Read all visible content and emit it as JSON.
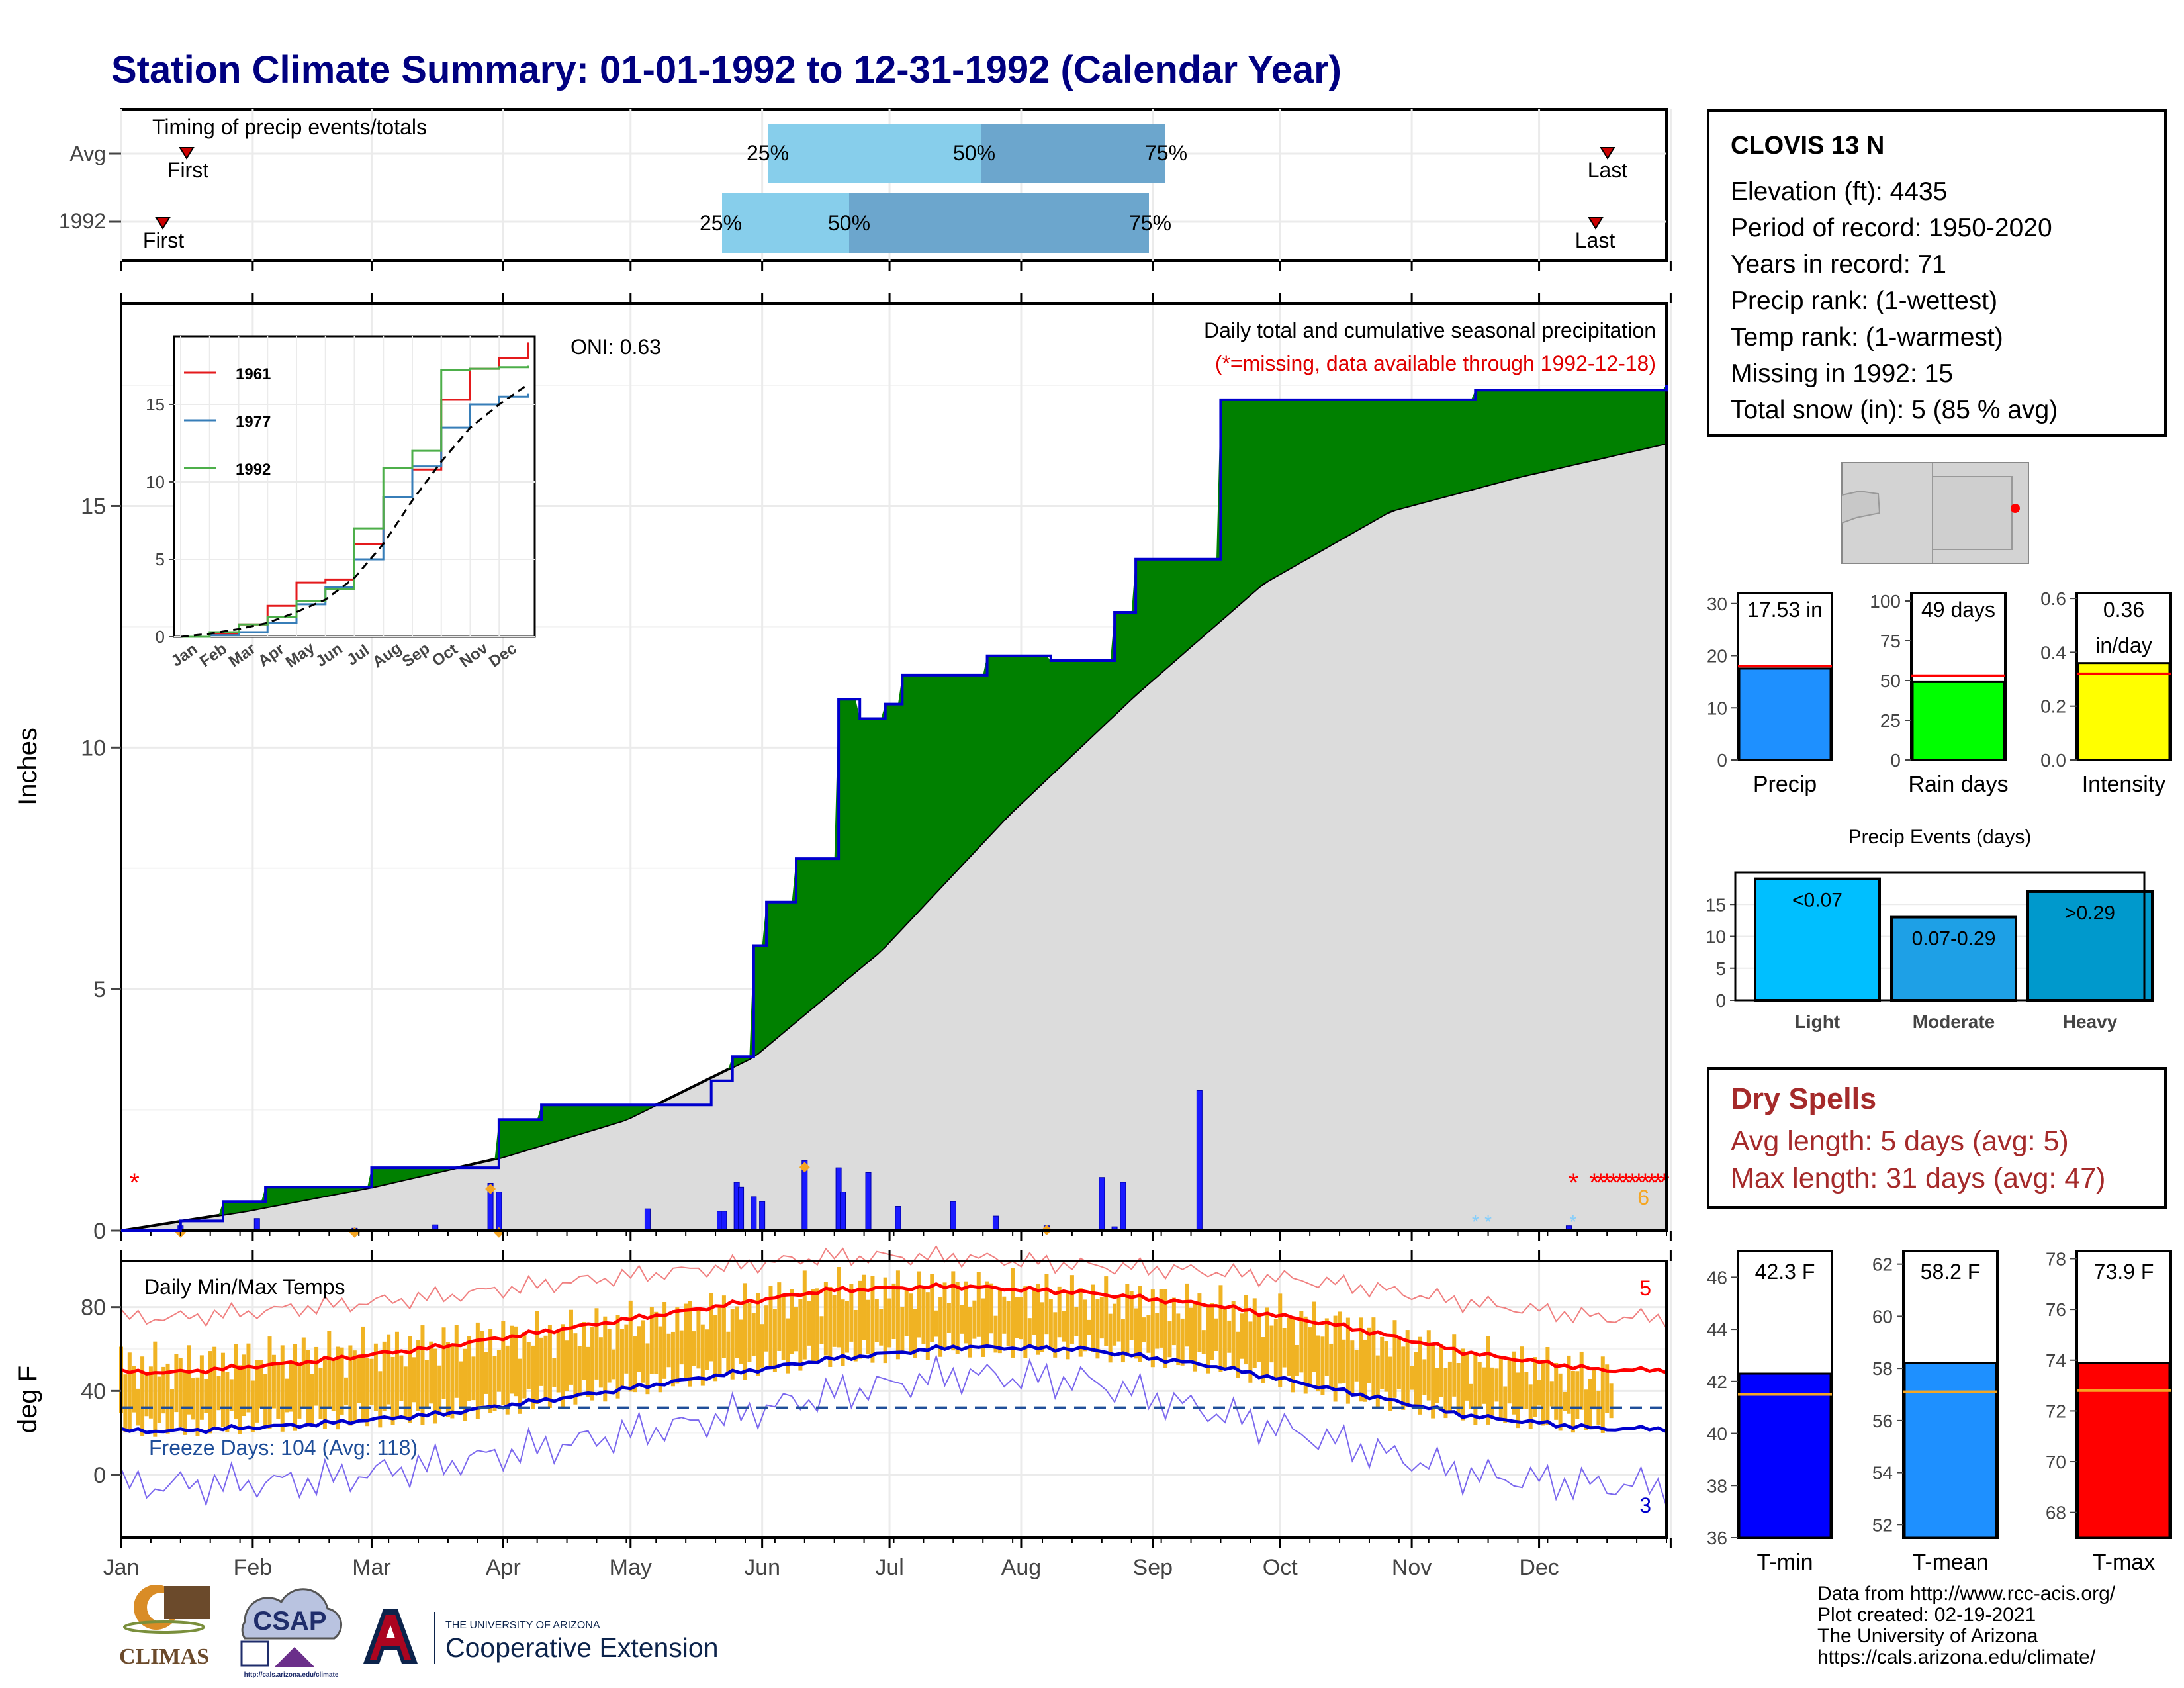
{
  "page": {
    "title": "Station Climate Summary: 01-01-1992 to 12-31-1992 (Calendar Year)"
  },
  "timing_panel": {
    "title": "Timing of precip events/totals",
    "rows": [
      {
        "label": "Avg",
        "first": "First",
        "last": "Last",
        "p25": "25%",
        "p50": "50%",
        "p75": "75%"
      },
      {
        "label": "1992",
        "first": "First",
        "last": "Last",
        "p25": "25%",
        "p50": "50%",
        "p75": "75%"
      }
    ]
  },
  "precip_panel": {
    "ylabel": "Inches",
    "yticks": [
      "0",
      "5",
      "10",
      "15"
    ],
    "oni": "ONI: 0.63",
    "subtitle": "Daily total and cumulative seasonal precipitation",
    "missing_note": "(*=missing, data available through 1992-12-18)",
    "snow_count": "6",
    "inset": {
      "legend": [
        "1961",
        "1977",
        "1992"
      ],
      "yticks": [
        "0",
        "5",
        "10",
        "15"
      ],
      "months": [
        "Jan",
        "Feb",
        "Mar",
        "Apr",
        "May",
        "Jun",
        "Jul",
        "Aug",
        "Sep",
        "Oct",
        "Nov",
        "Dec"
      ]
    }
  },
  "temp_panel": {
    "ylabel": "deg F",
    "title": "Daily Min/Max Temps",
    "yticks": [
      "0",
      "40",
      "80"
    ],
    "freeze_text": "Freeze Days: 104 (Avg: 118)",
    "record_high_count": "5",
    "record_low_count": "3",
    "months": [
      "Jan",
      "Feb",
      "Mar",
      "Apr",
      "May",
      "Jun",
      "Jul",
      "Aug",
      "Sep",
      "Oct",
      "Nov",
      "Dec"
    ]
  },
  "station": {
    "name": "CLOVIS 13 N",
    "lines": [
      "Elevation (ft): 4435",
      "Period of record: 1950-2020",
      "Years in record: 71",
      "Precip rank:  (1-wettest)",
      "Temp rank:  (1-warmest)",
      "Missing in 1992: 15",
      "Total snow (in): 5 (85 % avg)"
    ]
  },
  "mini_bars": {
    "precip": {
      "label": "Precip",
      "value_text": "17.53 in",
      "value": 17.53,
      "avg": 18.0,
      "yticks": [
        "0",
        "10",
        "20",
        "30"
      ],
      "ymax": 32,
      "color": "#1e90ff"
    },
    "raindays": {
      "label": "Rain days",
      "value_text": "49 days",
      "value": 49,
      "avg": 53,
      "yticks": [
        "0",
        "25",
        "50",
        "75",
        "100"
      ],
      "ymax": 105,
      "color": "#00ff00"
    },
    "intensity": {
      "label": "Intensity",
      "value_text": "0.36",
      "value_text2": "in/day",
      "value": 0.36,
      "avg": 0.32,
      "yticks": [
        "0.0",
        "0.2",
        "0.4",
        "0.6"
      ],
      "ymax": 0.62,
      "color": "#ffff00"
    }
  },
  "precip_events": {
    "title": "Precip Events (days)",
    "yticks": [
      "0",
      "5",
      "10",
      "15"
    ],
    "bars": [
      {
        "category": "Light",
        "label": "<0.07",
        "value": 19,
        "color": "#00bfff"
      },
      {
        "category": "Moderate",
        "label": "0.07-0.29",
        "value": 13,
        "color": "#1ea0e6"
      },
      {
        "category": "Heavy",
        "label": ">0.29",
        "value": 17,
        "color": "#0099cc"
      }
    ]
  },
  "dry_spells": {
    "title": "Dry Spells",
    "avg": "Avg length: 5 days (avg: 5)",
    "max": "Max length: 31 days (avg: 47)"
  },
  "temp_bars": {
    "tmin": {
      "label": "T-min",
      "value_text": "42.3 F",
      "value": 42.3,
      "avg": 41.5,
      "yticks": [
        "36",
        "38",
        "40",
        "42",
        "44",
        "46"
      ],
      "ymin": 36,
      "ymax": 47,
      "color": "#0000ff"
    },
    "tmean": {
      "label": "T-mean",
      "value_text": "58.2 F",
      "value": 58.2,
      "avg": 57.1,
      "yticks": [
        "52",
        "54",
        "56",
        "58",
        "60",
        "62"
      ],
      "ymin": 51.5,
      "ymax": 62.5,
      "color": "#1e90ff"
    },
    "tmax": {
      "label": "T-max",
      "value_text": "73.9 F",
      "value": 73.9,
      "avg": 72.8,
      "yticks": [
        "68",
        "70",
        "72",
        "74",
        "76",
        "78"
      ],
      "ymin": 67,
      "ymax": 78.3,
      "color": "#ff0000"
    }
  },
  "footer": {
    "lines": [
      "Data from http://www.rcc-acis.org/",
      "Plot created: 02-19-2021",
      "The University of Arizona",
      "https://cals.arizona.edu/climate/"
    ]
  },
  "logos": {
    "climas": "CLIMAS",
    "csap": "CSAP",
    "csap_url": "http://cals.arizona.edu/climate",
    "ua_small": "THE UNIVERSITY OF ARIZONA",
    "ua_large": "Cooperative Extension"
  },
  "chart_data": [
    {
      "type": "bar",
      "title": "Timing of precip events/totals",
      "categories": [
        "Avg",
        "1992"
      ],
      "series": [
        {
          "name": "First",
          "values": [
            "Jan 15",
            "Jan 10"
          ]
        },
        {
          "name": "25%",
          "values": [
            "May 25",
            "May 21"
          ]
        },
        {
          "name": "50%",
          "values": [
            "Jul 13",
            "Jun 21"
          ]
        },
        {
          "name": "75%",
          "values": [
            "Aug 28",
            "Aug 27"
          ]
        },
        {
          "name": "Last",
          "values": [
            "Dec 20",
            "Dec 17"
          ]
        }
      ]
    },
    {
      "type": "area",
      "title": "Daily total and cumulative seasonal precipitation",
      "ylabel": "Inches",
      "ylim": [
        0,
        19.2
      ],
      "x_unit": "day of year",
      "series": [
        {
          "name": "1992 cumulative",
          "x": [
            1,
            15,
            25,
            35,
            60,
            90,
            100,
            140,
            145,
            150,
            153,
            157,
            160,
            170,
            175,
            181,
            185,
            205,
            220,
            235,
            240,
            260,
            320,
            365
          ],
          "y": [
            0,
            0.2,
            0.6,
            0.9,
            1.3,
            2.3,
            2.6,
            3.1,
            3.6,
            5.9,
            6.8,
            6.8,
            7.7,
            11.0,
            10.6,
            10.9,
            11.5,
            11.9,
            11.8,
            12.8,
            13.9,
            17.2,
            17.4,
            17.5
          ]
        },
        {
          "name": "Avg cumulative",
          "x": [
            1,
            30,
            60,
            90,
            120,
            150,
            180,
            210,
            240,
            270,
            300,
            330,
            365
          ],
          "y": [
            0,
            0.4,
            0.9,
            1.5,
            2.3,
            3.6,
            5.8,
            8.6,
            11.1,
            13.4,
            14.9,
            15.6,
            16.3
          ]
        },
        {
          "name": "Daily precip",
          "x": [
            15,
            33,
            56,
            75,
            88,
            90,
            125,
            142,
            143,
            146,
            147,
            150,
            152,
            162,
            170,
            171,
            177,
            184,
            197,
            207,
            219,
            232,
            235,
            237,
            255,
            342
          ],
          "y": [
            0.1,
            0.25,
            0.05,
            0.12,
            0.98,
            0.8,
            0.45,
            0.4,
            0.4,
            1.0,
            0.9,
            0.7,
            0.6,
            1.45,
            1.3,
            0.8,
            1.2,
            0.5,
            0.6,
            0.3,
            0.1,
            1.1,
            0.08,
            1.0,
            2.9,
            0.1
          ]
        }
      ]
    },
    {
      "type": "line",
      "title": "Daily Min/Max Temps",
      "ylabel": "deg F",
      "ylim": [
        -30,
        102
      ],
      "x_unit": "month",
      "categories": [
        "Jan",
        "Feb",
        "Mar",
        "Apr",
        "May",
        "Jun",
        "Jul",
        "Aug",
        "Sep",
        "Oct",
        "Nov",
        "Dec"
      ],
      "series": [
        {
          "name": "Avg max",
          "values": [
            49,
            54,
            61,
            70,
            79,
            88,
            90,
            87,
            81,
            71,
            58,
            50
          ]
        },
        {
          "name": "Avg min",
          "values": [
            21,
            24,
            29,
            37,
            46,
            55,
            61,
            60,
            52,
            40,
            28,
            22
          ]
        },
        {
          "name": "Record high",
          "values": [
            75,
            80,
            85,
            92,
            98,
            104,
            104,
            100,
            97,
            91,
            82,
            75
          ]
        },
        {
          "name": "Record low",
          "values": [
            -5,
            -3,
            5,
            15,
            25,
            38,
            48,
            45,
            30,
            15,
            0,
            -5
          ]
        },
        {
          "name": "Daily max 1992",
          "values": [
            52,
            57,
            62,
            68,
            76,
            88,
            88,
            85,
            80,
            70,
            55,
            48
          ]
        },
        {
          "name": "Daily min 1992",
          "values": [
            24,
            27,
            30,
            38,
            48,
            57,
            62,
            61,
            54,
            40,
            30,
            25
          ]
        }
      ],
      "freeze_line": 32
    },
    {
      "type": "line",
      "title": "",
      "x_unit": "month",
      "ylim": [
        0,
        19
      ],
      "categories": [
        "Jan",
        "Feb",
        "Mar",
        "Apr",
        "May",
        "Jun",
        "Jul",
        "Aug",
        "Sep",
        "Oct",
        "Nov",
        "Dec"
      ],
      "series": [
        {
          "name": "1961",
          "values": [
            0.2,
            0.8,
            2.0,
            3.5,
            3.7,
            6.0,
            9.0,
            10.8,
            15.3,
            17.3,
            18.0,
            19.0
          ]
        },
        {
          "name": "1977",
          "values": [
            0.1,
            0.3,
            0.9,
            2.1,
            3.2,
            5.0,
            9.0,
            11.0,
            13.5,
            15.0,
            15.5,
            15.7
          ]
        },
        {
          "name": "1992",
          "values": [
            0.3,
            0.8,
            1.3,
            2.3,
            3.1,
            7.0,
            10.9,
            12.0,
            17.2,
            17.3,
            17.4,
            17.5
          ]
        },
        {
          "name": "Avg",
          "values": [
            0.2,
            0.5,
            0.9,
            1.6,
            2.4,
            3.8,
            6.0,
            8.8,
            11.3,
            13.5,
            15.0,
            16.3
          ]
        }
      ]
    },
    {
      "type": "bar",
      "title": "Precip Events (days)",
      "categories": [
        "Light",
        "Moderate",
        "Heavy"
      ],
      "values": [
        19,
        13,
        17
      ],
      "ylim": [
        0,
        20
      ]
    },
    {
      "type": "bar",
      "categories": [
        "Precip",
        "Rain days",
        "Intensity"
      ],
      "values": [
        17.53,
        49,
        0.36
      ]
    },
    {
      "type": "bar",
      "categories": [
        "T-min",
        "T-mean",
        "T-max"
      ],
      "values": [
        42.3,
        58.2,
        73.9
      ]
    }
  ]
}
